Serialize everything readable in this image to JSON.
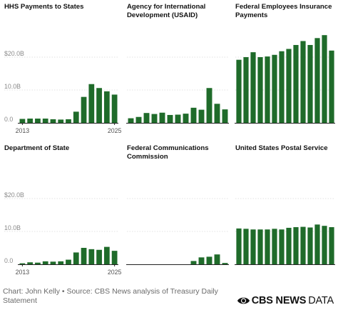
{
  "chart_data": [
    {
      "type": "bar",
      "title": "HHS Payments to States",
      "x_start_label": "2013",
      "x_end_label": "2025",
      "y_tick_labels": [
        "$20.0B",
        "10.0B",
        "0.0"
      ],
      "y_ticks": [
        20,
        10,
        0
      ],
      "ylim": [
        0,
        30
      ],
      "values": [
        1.2,
        1.3,
        1.3,
        1.3,
        1.1,
        1.0,
        1.1,
        3.4,
        7.9,
        11.8,
        10.6,
        9.6,
        8.6
      ]
    },
    {
      "type": "bar",
      "title": "Agency for International Development (USAID)",
      "x_start_label": "",
      "x_end_label": "",
      "y_tick_labels": [],
      "y_ticks": [
        20,
        10,
        0
      ],
      "ylim": [
        0,
        30
      ],
      "values": [
        1.4,
        1.8,
        3.0,
        2.7,
        3.1,
        2.4,
        2.5,
        2.8,
        4.6,
        4.0,
        10.6,
        5.8,
        4.1
      ]
    },
    {
      "type": "bar",
      "title": "Federal Employees Insurance Payments",
      "x_start_label": "",
      "x_end_label": "",
      "y_tick_labels": [],
      "y_ticks": [
        20,
        10,
        0
      ],
      "ylim": [
        0,
        30
      ],
      "values": [
        19.2,
        20.0,
        21.5,
        20.0,
        20.2,
        20.7,
        21.8,
        22.5,
        23.7,
        24.9,
        23.7,
        25.8,
        26.7,
        22.0
      ]
    },
    {
      "type": "bar",
      "title": "Department of State",
      "x_start_label": "2013",
      "x_end_label": "2025",
      "y_tick_labels": [
        "$20.0B",
        "10.0B",
        "0.0"
      ],
      "y_ticks": [
        20,
        10,
        0
      ],
      "ylim": [
        0,
        30
      ],
      "values": [
        0.3,
        0.6,
        0.5,
        0.9,
        0.8,
        0.9,
        1.4,
        3.6,
        5.0,
        4.6,
        4.4,
        5.3,
        4.1
      ]
    },
    {
      "type": "bar",
      "title": "Federal Communications Commission",
      "x_start_label": "",
      "x_end_label": "",
      "y_tick_labels": [],
      "y_ticks": [
        20,
        10,
        0
      ],
      "ylim": [
        0,
        30
      ],
      "values": [
        0,
        0,
        0,
        0,
        0,
        0,
        0,
        0,
        1.0,
        2.1,
        2.3,
        3.0,
        0.4
      ]
    },
    {
      "type": "bar",
      "title": "United States Postal Service",
      "x_start_label": "",
      "x_end_label": "",
      "y_tick_labels": [],
      "y_ticks": [
        20,
        10,
        0
      ],
      "ylim": [
        0,
        30
      ],
      "values": [
        10.9,
        10.8,
        10.6,
        10.6,
        10.6,
        10.8,
        10.6,
        11.1,
        11.3,
        11.4,
        11.2,
        12.1,
        11.7,
        11.3
      ]
    }
  ],
  "footer": {
    "note": "Chart: John Kelly • Source: CBS News analysis of Treasury Daily Statement",
    "brand_name": "CBS NEWS",
    "brand_suffix": "DATA"
  },
  "colors": {
    "bar": "#1f6b2a",
    "axis": "#222222",
    "grid": "#e2e2e2",
    "tick_text": "#8a8a8a"
  }
}
